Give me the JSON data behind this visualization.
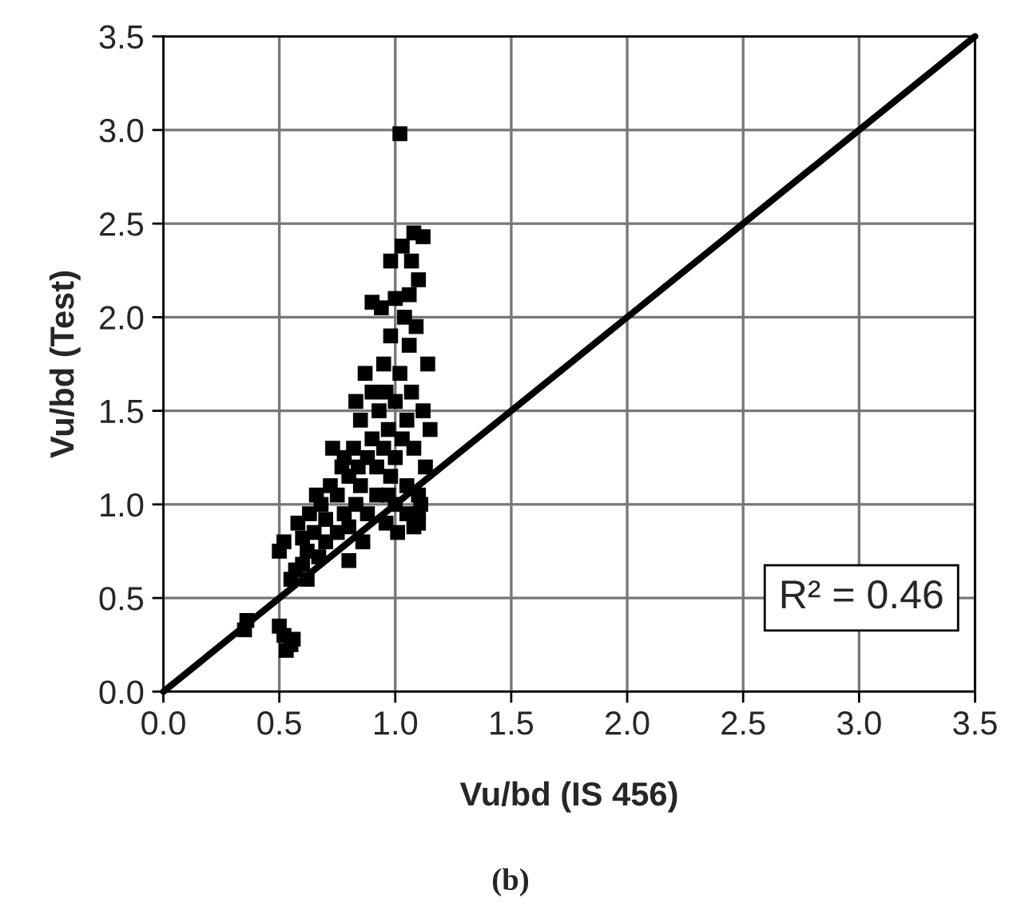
{
  "chart_data": {
    "type": "scatter",
    "xlabel": "Vu/bd (IS 456)",
    "ylabel": "Vu/bd (Test)",
    "xlim": [
      0,
      3.5
    ],
    "ylim": [
      0,
      3.5
    ],
    "xticks": [
      {
        "value": 0,
        "label": "0.0"
      },
      {
        "value": 0.5,
        "label": "0.5"
      },
      {
        "value": 1,
        "label": "1.0"
      },
      {
        "value": 1.5,
        "label": "1.5"
      },
      {
        "value": 2,
        "label": "2.0"
      },
      {
        "value": 2.5,
        "label": "2.5"
      },
      {
        "value": 3,
        "label": "3.0"
      },
      {
        "value": 3.5,
        "label": "3.5"
      }
    ],
    "yticks": [
      {
        "value": 0,
        "label": "0.0"
      },
      {
        "value": 0.5,
        "label": "0.5"
      },
      {
        "value": 1,
        "label": "1.0"
      },
      {
        "value": 1.5,
        "label": "1.5"
      },
      {
        "value": 2,
        "label": "2.0"
      },
      {
        "value": 2.5,
        "label": "2.5"
      },
      {
        "value": 3,
        "label": "3.0"
      },
      {
        "value": 3.5,
        "label": "3.5"
      }
    ],
    "grid": true,
    "marker": "square",
    "annotations": [
      "R² = 0.46",
      "(b)"
    ],
    "series": [
      {
        "color": "#000000",
        "x": [
          1.02,
          0.35,
          0.36,
          0.5,
          0.52,
          0.55,
          0.53,
          0.56,
          0.5,
          0.52,
          0.55,
          0.57,
          0.6,
          0.58,
          0.63,
          0.62,
          0.65,
          0.67,
          0.7,
          0.68,
          0.72,
          0.7,
          0.75,
          0.75,
          0.77,
          0.78,
          0.8,
          0.8,
          0.82,
          0.83,
          0.85,
          0.85,
          0.86,
          0.88,
          0.88,
          0.9,
          0.9,
          0.92,
          0.92,
          0.93,
          0.95,
          0.95,
          0.96,
          0.97,
          0.98,
          0.98,
          1.0,
          1.0,
          1.0,
          1.0,
          1.01,
          1.02,
          1.03,
          1.04,
          1.05,
          1.05,
          1.06,
          1.07,
          1.07,
          1.08,
          1.08,
          1.1,
          1.1,
          1.1,
          1.12,
          1.12,
          1.13,
          1.14,
          1.15,
          1.1,
          1.05,
          0.98,
          0.94,
          0.9,
          0.83,
          0.78,
          0.73,
          0.66,
          0.6,
          0.62,
          1.03,
          1.06,
          1.09,
          0.96,
          0.87,
          1.11,
          1.08,
          0.8,
          0.84,
          0.97
        ],
        "values": [
          2.98,
          0.33,
          0.38,
          0.35,
          0.3,
          0.25,
          0.22,
          0.28,
          0.75,
          0.8,
          0.6,
          0.65,
          0.68,
          0.9,
          0.95,
          0.75,
          0.85,
          0.72,
          0.8,
          1.0,
          1.1,
          0.92,
          0.85,
          1.05,
          1.2,
          0.95,
          0.7,
          1.15,
          1.3,
          1.0,
          1.1,
          1.45,
          0.8,
          1.25,
          0.95,
          1.35,
          1.6,
          1.2,
          1.05,
          1.5,
          1.75,
          1.3,
          0.9,
          1.4,
          1.9,
          1.15,
          2.1,
          1.55,
          1.25,
          1.0,
          0.85,
          1.7,
          1.35,
          2.0,
          1.45,
          1.1,
          1.85,
          2.3,
          1.6,
          2.45,
          1.3,
          2.2,
          1.05,
          0.95,
          2.43,
          1.5,
          1.2,
          1.75,
          1.4,
          0.9,
          0.95,
          2.3,
          2.05,
          2.08,
          1.55,
          1.25,
          1.3,
          1.05,
          0.82,
          0.6,
          2.38,
          2.12,
          1.95,
          1.6,
          1.7,
          1.0,
          0.88,
          0.88,
          1.2,
          1.05
        ]
      },
      {
        "type": "line",
        "color": "#000000",
        "marker": "none",
        "x": [
          0,
          3.5
        ],
        "values": [
          0,
          3.5
        ]
      }
    ]
  }
}
